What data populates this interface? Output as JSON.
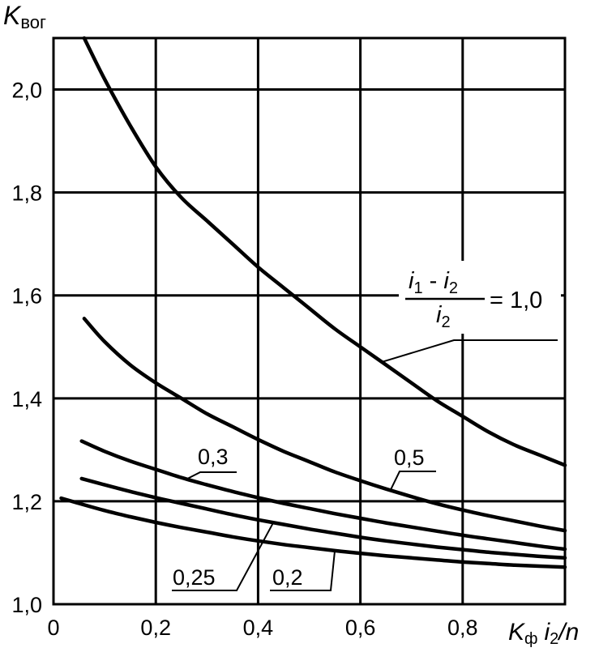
{
  "chart_data": {
    "type": "line",
    "ylabel": {
      "main": "K",
      "sub": "вог"
    },
    "xlabel": {
      "k": "K",
      "k_sub": "ф",
      "i": "i",
      "i_sub": "2",
      "rest": "/n"
    },
    "xlim": [
      0,
      1.0
    ],
    "ylim": [
      1.0,
      2.1
    ],
    "x_ticks": [
      "0",
      "0,2",
      "0,4",
      "0,6",
      "0,8"
    ],
    "x_tick_values": [
      0,
      0.2,
      0.4,
      0.6,
      0.8
    ],
    "y_ticks": [
      "1,0",
      "1,2",
      "1,4",
      "1,6",
      "1,8",
      "2,0"
    ],
    "y_tick_values": [
      1.0,
      1.2,
      1.4,
      1.6,
      1.8,
      2.0
    ],
    "grid": true,
    "formula": {
      "num_i1": "i",
      "num_i1_sub": "1",
      "minus": " - ",
      "num_i2": "i",
      "num_i2_sub": "2",
      "den_i": "i",
      "den_sub": "2",
      "equals": "= 1,0"
    },
    "series": [
      {
        "label": "",
        "points": [
          [
            0.06,
            2.1
          ],
          [
            0.1,
            2.02
          ],
          [
            0.15,
            1.93
          ],
          [
            0.2,
            1.85
          ],
          [
            0.25,
            1.79
          ],
          [
            0.3,
            1.745
          ],
          [
            0.35,
            1.7
          ],
          [
            0.4,
            1.655
          ],
          [
            0.45,
            1.615
          ],
          [
            0.5,
            1.575
          ],
          [
            0.55,
            1.535
          ],
          [
            0.6,
            1.5
          ],
          [
            0.65,
            1.465
          ],
          [
            0.7,
            1.43
          ],
          [
            0.75,
            1.395
          ],
          [
            0.8,
            1.365
          ],
          [
            0.85,
            1.335
          ],
          [
            0.9,
            1.31
          ],
          [
            0.95,
            1.29
          ],
          [
            1.0,
            1.27
          ]
        ]
      },
      {
        "label": "0,5",
        "points": [
          [
            0.06,
            1.555
          ],
          [
            0.1,
            1.51
          ],
          [
            0.15,
            1.465
          ],
          [
            0.2,
            1.43
          ],
          [
            0.25,
            1.4
          ],
          [
            0.3,
            1.37
          ],
          [
            0.35,
            1.345
          ],
          [
            0.4,
            1.32
          ],
          [
            0.45,
            1.297
          ],
          [
            0.5,
            1.277
          ],
          [
            0.55,
            1.257
          ],
          [
            0.6,
            1.24
          ],
          [
            0.65,
            1.224
          ],
          [
            0.7,
            1.209
          ],
          [
            0.75,
            1.195
          ],
          [
            0.8,
            1.183
          ],
          [
            0.85,
            1.172
          ],
          [
            0.9,
            1.162
          ],
          [
            0.95,
            1.152
          ],
          [
            1.0,
            1.143
          ]
        ]
      },
      {
        "label": "0,3",
        "points": [
          [
            0.055,
            1.317
          ],
          [
            0.1,
            1.297
          ],
          [
            0.15,
            1.278
          ],
          [
            0.2,
            1.262
          ],
          [
            0.25,
            1.246
          ],
          [
            0.3,
            1.232
          ],
          [
            0.35,
            1.219
          ],
          [
            0.4,
            1.207
          ],
          [
            0.45,
            1.196
          ],
          [
            0.5,
            1.186
          ],
          [
            0.55,
            1.176
          ],
          [
            0.6,
            1.167
          ],
          [
            0.65,
            1.158
          ],
          [
            0.7,
            1.15
          ],
          [
            0.75,
            1.142
          ],
          [
            0.8,
            1.134
          ],
          [
            0.85,
            1.127
          ],
          [
            0.9,
            1.12
          ],
          [
            0.95,
            1.113
          ],
          [
            1.0,
            1.107
          ]
        ]
      },
      {
        "label": "0,25",
        "points": [
          [
            0.055,
            1.244
          ],
          [
            0.1,
            1.232
          ],
          [
            0.15,
            1.219
          ],
          [
            0.2,
            1.207
          ],
          [
            0.25,
            1.196
          ],
          [
            0.3,
            1.185
          ],
          [
            0.35,
            1.174
          ],
          [
            0.4,
            1.164
          ],
          [
            0.45,
            1.155
          ],
          [
            0.5,
            1.146
          ],
          [
            0.55,
            1.138
          ],
          [
            0.6,
            1.13
          ],
          [
            0.65,
            1.123
          ],
          [
            0.7,
            1.117
          ],
          [
            0.75,
            1.111
          ],
          [
            0.8,
            1.106
          ],
          [
            0.85,
            1.101
          ],
          [
            0.9,
            1.097
          ],
          [
            0.95,
            1.093
          ],
          [
            1.0,
            1.09
          ]
        ]
      },
      {
        "label": "0,2",
        "points": [
          [
            0.015,
            1.206
          ],
          [
            0.05,
            1.196
          ],
          [
            0.1,
            1.182
          ],
          [
            0.15,
            1.17
          ],
          [
            0.2,
            1.159
          ],
          [
            0.25,
            1.149
          ],
          [
            0.3,
            1.14
          ],
          [
            0.35,
            1.131
          ],
          [
            0.4,
            1.123
          ],
          [
            0.45,
            1.116
          ],
          [
            0.5,
            1.11
          ],
          [
            0.55,
            1.104
          ],
          [
            0.6,
            1.099
          ],
          [
            0.65,
            1.094
          ],
          [
            0.7,
            1.09
          ],
          [
            0.75,
            1.086
          ],
          [
            0.8,
            1.082
          ],
          [
            0.85,
            1.079
          ],
          [
            0.9,
            1.076
          ],
          [
            0.95,
            1.074
          ],
          [
            1.0,
            1.072
          ]
        ]
      }
    ],
    "annotations": [
      {
        "text": "0,5",
        "series": 1,
        "at": [
          0.66,
          1.224
        ]
      },
      {
        "text": "0,3",
        "series": 2,
        "at": [
          0.26,
          1.243
        ]
      },
      {
        "text": "0,25",
        "series": 3,
        "at": [
          0.43,
          1.159
        ]
      },
      {
        "text": "0,2",
        "series": 4,
        "at": [
          0.55,
          1.104
        ]
      },
      {
        "text": "= 1,0",
        "series": 0,
        "at": [
          0.64,
          1.47
        ]
      }
    ]
  }
}
